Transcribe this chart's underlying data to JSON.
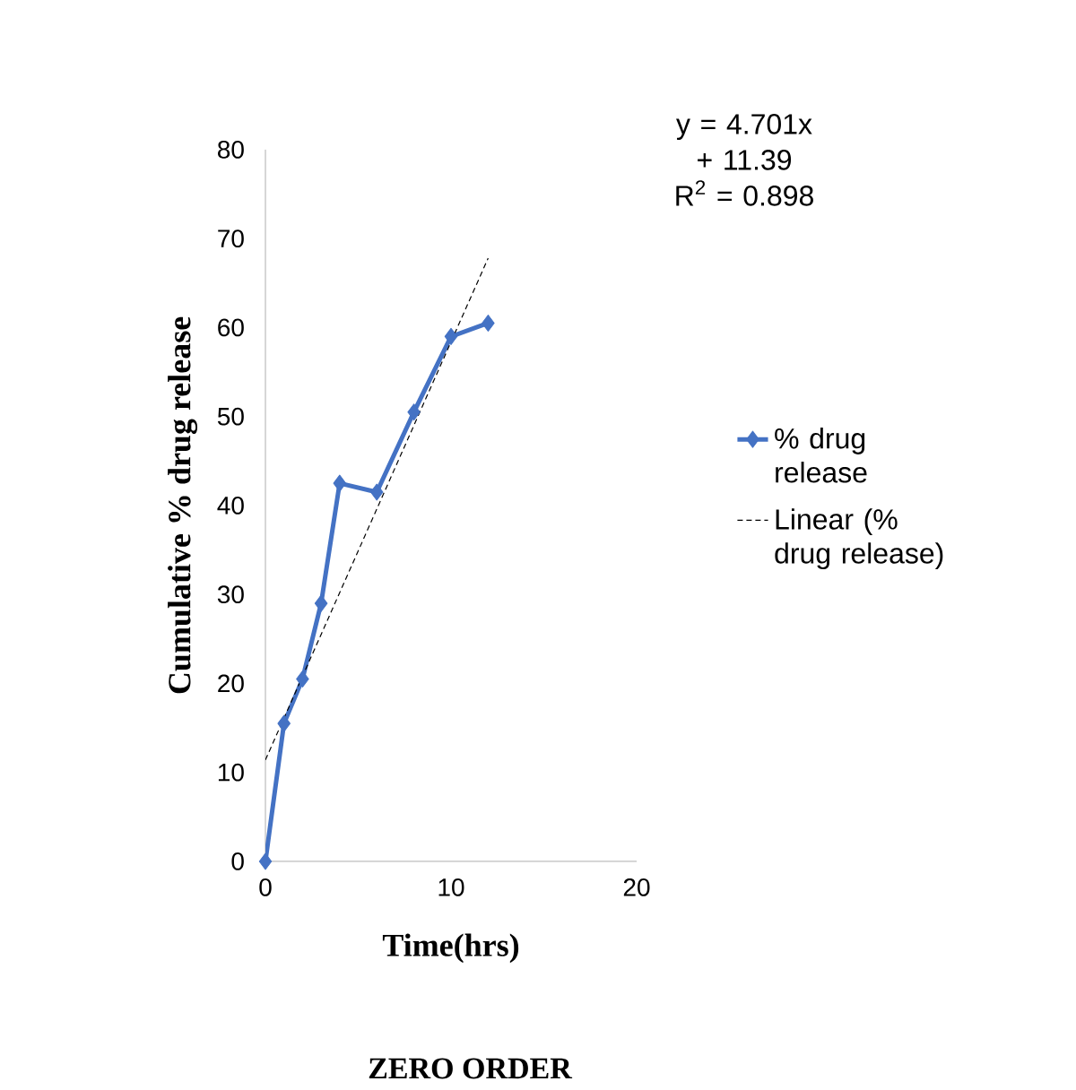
{
  "chart_data": {
    "type": "line",
    "title": "ZERO ORDER",
    "xlabel": "Time(hrs)",
    "ylabel": "Cumulative % drug release",
    "xlim": [
      0,
      20
    ],
    "xticks": [
      0,
      10,
      20
    ],
    "ylim": [
      0,
      80
    ],
    "yticks": [
      0,
      10,
      20,
      30,
      40,
      50,
      60,
      70,
      80
    ],
    "grid": false,
    "legend": "right",
    "marker": "diamond",
    "line_style": "solid",
    "annotations": [
      "y = 4.701x + 11.39",
      "R$^{2}$ = 0.898"
    ],
    "series": [
      {
        "name": "% drug release",
        "color": "#4472c4",
        "x": [
          0,
          1,
          2,
          3,
          4,
          6,
          8,
          10,
          12
        ],
        "values": [
          0,
          15.5,
          20.5,
          29,
          42.5,
          41.5,
          50.5,
          59,
          60.5
        ]
      },
      {
        "name": "Linear (% drug release)",
        "type": "line",
        "color": "#000000",
        "marker": "none",
        "line_style": "dashed",
        "x": [
          0,
          12
        ],
        "values": [
          11.4,
          67.8
        ]
      }
    ]
  }
}
